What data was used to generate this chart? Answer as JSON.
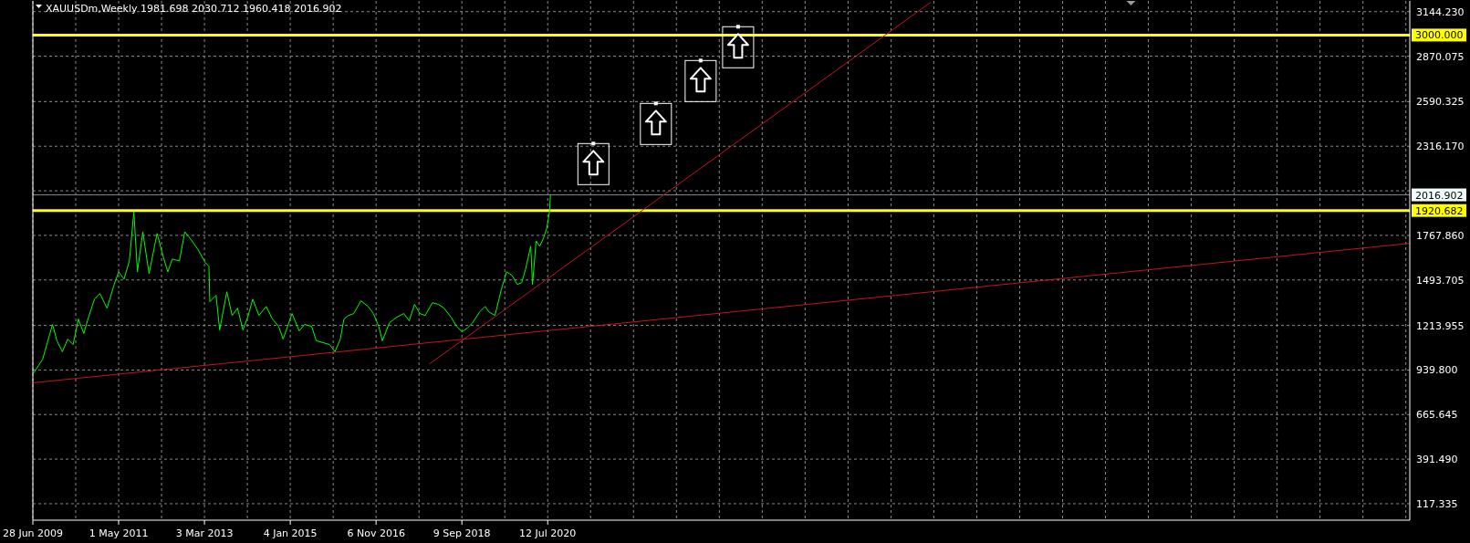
{
  "chart_data": {
    "type": "line",
    "title": "XAUUSDm,Weekly 1981.698 2030.712 1960.418 2016.902",
    "xlim": [
      "2009-06-28",
      "2039-01-05"
    ],
    "xticks": [
      {
        "value": "2009-06-28",
        "label": "28 Jun 2009"
      },
      {
        "value": "2010-05-30",
        "label": null
      },
      {
        "value": "2011-05-01",
        "label": "1 May 2011"
      },
      {
        "value": "2012-04-01",
        "label": null
      },
      {
        "value": "2013-03-03",
        "label": "3 Mar 2013"
      },
      {
        "value": "2014-02-02",
        "label": null
      },
      {
        "value": "2015-01-04",
        "label": "4 Jan 2015"
      },
      {
        "value": "2015-12-06",
        "label": null
      },
      {
        "value": "2016-11-06",
        "label": "6 Nov 2016"
      },
      {
        "value": "2017-10-08",
        "label": null
      },
      {
        "value": "2018-09-09",
        "label": "9 Sep 2018"
      },
      {
        "value": "2019-08-11",
        "label": null
      },
      {
        "value": "2020-07-12",
        "label": "12 Jul 2020"
      },
      {
        "value": "2021-06-13",
        "label": null
      },
      {
        "value": "2022-05-15",
        "label": null
      },
      {
        "value": "2023-04-16",
        "label": null
      },
      {
        "value": "2024-03-17",
        "label": null
      },
      {
        "value": "2025-02-16",
        "label": null
      },
      {
        "value": "2026-01-18",
        "label": null
      },
      {
        "value": "2026-12-20",
        "label": null
      },
      {
        "value": "2027-11-21",
        "label": null
      },
      {
        "value": "2028-10-22",
        "label": null
      },
      {
        "value": "2029-09-23",
        "label": null
      },
      {
        "value": "2030-08-25",
        "label": null
      },
      {
        "value": "2031-07-27",
        "label": null
      },
      {
        "value": "2032-06-27",
        "label": null
      },
      {
        "value": "2033-05-29",
        "label": null
      },
      {
        "value": "2034-04-30",
        "label": null
      },
      {
        "value": "2035-04-01",
        "label": null
      },
      {
        "value": "2036-03-02",
        "label": null
      },
      {
        "value": "2037-02-01",
        "label": null
      },
      {
        "value": "2038-01-03",
        "label": null
      },
      {
        "value": "2038-12-05",
        "label": null
      }
    ],
    "ylim": [
      16,
      3210
    ],
    "yticks": [
      117.335,
      {
        "value": 391.49,
        "label": "391.490"
      },
      665.645,
      {
        "value": 939.8,
        "label": "939.800"
      },
      1213.955,
      1493.705,
      {
        "value": 1767.86,
        "label": "1767.860"
      },
      {
        "value": 2042.015,
        "label": null
      },
      {
        "value": 2316.17,
        "label": "2316.170"
      },
      2590.325,
      2870.075,
      {
        "value": 3144.23,
        "label": "3144.230"
      }
    ],
    "grid": true,
    "series": [
      {
        "color": "#00ff00",
        "x": [
          "2009-07-05",
          "2009-09-13",
          "2009-11-29",
          "2010-01-03",
          "2010-02-14",
          "2010-03-28",
          "2010-05-09",
          "2010-06-20",
          "2010-08-01",
          "2010-08-29",
          "2010-10-24",
          "2010-12-05",
          "2011-01-30",
          "2011-03-27",
          "2011-05-01",
          "2011-06-12",
          "2011-07-24",
          "2011-08-28",
          "2011-09-25",
          "2011-11-06",
          "2011-12-25",
          "2012-02-26",
          "2012-04-15",
          "2012-05-20",
          "2012-06-24",
          "2012-08-19",
          "2012-09-30",
          "2012-11-25",
          "2013-01-13",
          "2013-03-10",
          "2013-04-07",
          "2013-04-14",
          "2013-06-02",
          "2013-06-30",
          "2013-08-25",
          "2013-10-06",
          "2013-11-17",
          "2013-12-29",
          "2014-02-09",
          "2014-03-16",
          "2014-05-04",
          "2014-06-29",
          "2014-08-17",
          "2014-10-05",
          "2014-11-09",
          "2015-01-18",
          "2015-03-15",
          "2015-04-26",
          "2015-06-21",
          "2015-07-26",
          "2015-11-08",
          "2015-12-20",
          "2016-01-31",
          "2016-02-28",
          "2016-04-03",
          "2016-05-15",
          "2016-07-10",
          "2016-09-04",
          "2016-10-16",
          "2016-11-27",
          "2016-12-25",
          "2017-02-19",
          "2017-04-16",
          "2017-06-11",
          "2017-07-23",
          "2017-09-03",
          "2017-10-15",
          "2017-11-26",
          "2018-01-21",
          "2018-03-11",
          "2018-04-22",
          "2018-06-17",
          "2018-07-29",
          "2018-09-09",
          "2018-10-21",
          "2018-12-02",
          "2019-01-27",
          "2019-03-10",
          "2019-04-07",
          "2019-05-26",
          "2019-07-14",
          "2019-08-25",
          "2019-10-06",
          "2019-11-17",
          "2019-12-22",
          "2020-01-19",
          "2020-03-01",
          "2020-03-15",
          "2020-04-12",
          "2020-05-10",
          "2020-06-07",
          "2020-07-05",
          "2020-07-26",
          "2020-08-02"
        ],
        "values": [
          922,
          1007,
          1220,
          1119,
          1052,
          1130,
          1096,
          1253,
          1164,
          1242,
          1376,
          1410,
          1320,
          1466,
          1544,
          1499,
          1611,
          1913,
          1544,
          1790,
          1533,
          1780,
          1634,
          1544,
          1622,
          1611,
          1790,
          1734,
          1678,
          1600,
          1578,
          1360,
          1399,
          1186,
          1421,
          1275,
          1320,
          1186,
          1275,
          1376,
          1275,
          1331,
          1253,
          1208,
          1130,
          1287,
          1180,
          1220,
          1208,
          1120,
          1096,
          1052,
          1130,
          1253,
          1275,
          1287,
          1365,
          1331,
          1287,
          1208,
          1119,
          1231,
          1264,
          1287,
          1242,
          1343,
          1287,
          1275,
          1354,
          1343,
          1320,
          1264,
          1208,
          1175,
          1197,
          1231,
          1298,
          1331,
          1298,
          1275,
          1432,
          1544,
          1522,
          1466,
          1477,
          1555,
          1701,
          1466,
          1734,
          1701,
          1746,
          1813,
          1913,
          2017
        ]
      },
      {
        "color": "#c8141e",
        "x": [
          "2009-06-28",
          "2039-01-05"
        ],
        "values": [
          861,
          1719
        ]
      },
      {
        "color": "#c8141e",
        "x": [
          "2017-12-31",
          "2028-09-24"
        ],
        "values": [
          978,
          3200
        ]
      }
    ],
    "ref_lines": [
      {
        "axis": "y",
        "value": 3000,
        "label": "3000.000",
        "color": "#ffff00"
      },
      {
        "axis": "y",
        "value": 2016.902,
        "label": "2016.902",
        "color": "#778899"
      },
      {
        "axis": "y",
        "value": 1920.682,
        "label": "1920.682",
        "color": "#ffff00"
      }
    ]
  }
}
